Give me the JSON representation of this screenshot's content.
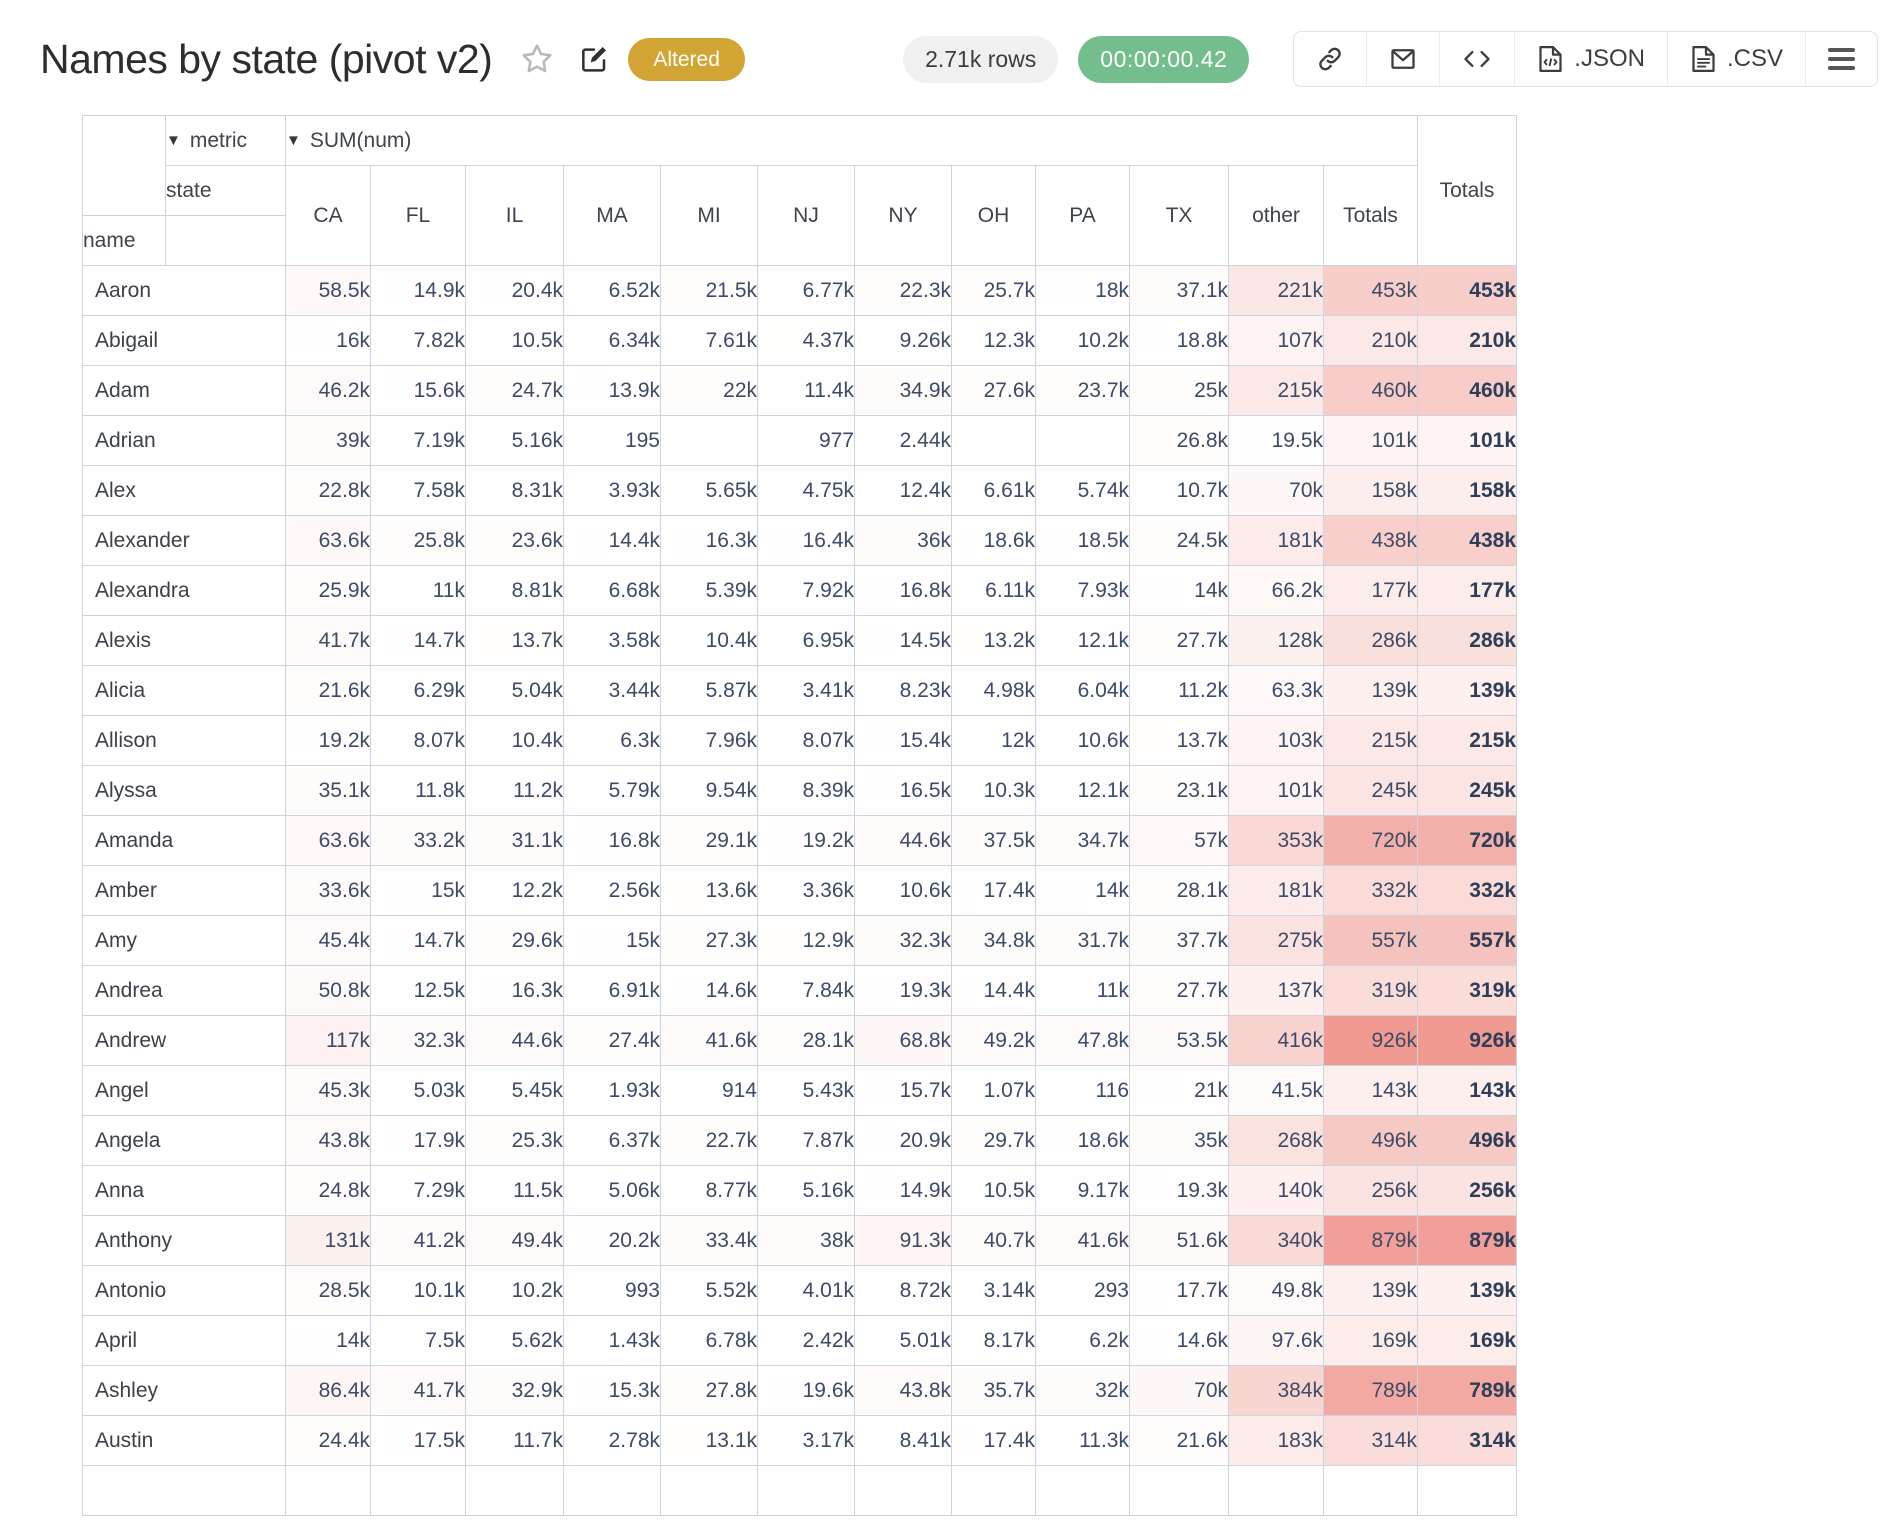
{
  "header": {
    "title": "Names by state (pivot v2)",
    "altered_badge": "Altered",
    "rows_badge": "2.71k rows",
    "timer_badge": "00:00:00.42",
    "json_label": ".JSON",
    "csv_label": ".CSV"
  },
  "icons": {
    "caret_down": "▼"
  },
  "colors": {
    "heat_color": "#f09a92",
    "border": "#ccd4e0",
    "accent_gold": "#d2a434",
    "accent_green": "#73be8c"
  },
  "table": {
    "metric_label": "metric",
    "metric_value": "SUM(num)",
    "state_label": "state",
    "name_label": "name",
    "totals_label": "Totals",
    "heat_max": 926000,
    "columns": [
      "CA",
      "FL",
      "IL",
      "MA",
      "MI",
      "NJ",
      "NY",
      "OH",
      "PA",
      "TX",
      "other",
      "Totals"
    ],
    "rows": [
      {
        "name": "Aaron",
        "values": [
          "58.5k",
          "14.9k",
          "20.4k",
          "6.52k",
          "21.5k",
          "6.77k",
          "22.3k",
          "25.7k",
          "18k",
          "37.1k",
          "221k",
          "453k"
        ],
        "total": "453k"
      },
      {
        "name": "Abigail",
        "values": [
          "16k",
          "7.82k",
          "10.5k",
          "6.34k",
          "7.61k",
          "4.37k",
          "9.26k",
          "12.3k",
          "10.2k",
          "18.8k",
          "107k",
          "210k"
        ],
        "total": "210k"
      },
      {
        "name": "Adam",
        "values": [
          "46.2k",
          "15.6k",
          "24.7k",
          "13.9k",
          "22k",
          "11.4k",
          "34.9k",
          "27.6k",
          "23.7k",
          "25k",
          "215k",
          "460k"
        ],
        "total": "460k"
      },
      {
        "name": "Adrian",
        "values": [
          "39k",
          "7.19k",
          "5.16k",
          "195",
          "",
          "977",
          "2.44k",
          "",
          "",
          "26.8k",
          "19.5k",
          "101k"
        ],
        "total": "101k"
      },
      {
        "name": "Alex",
        "values": [
          "22.8k",
          "7.58k",
          "8.31k",
          "3.93k",
          "5.65k",
          "4.75k",
          "12.4k",
          "6.61k",
          "5.74k",
          "10.7k",
          "70k",
          "158k"
        ],
        "total": "158k"
      },
      {
        "name": "Alexander",
        "values": [
          "63.6k",
          "25.8k",
          "23.6k",
          "14.4k",
          "16.3k",
          "16.4k",
          "36k",
          "18.6k",
          "18.5k",
          "24.5k",
          "181k",
          "438k"
        ],
        "total": "438k"
      },
      {
        "name": "Alexandra",
        "values": [
          "25.9k",
          "11k",
          "8.81k",
          "6.68k",
          "5.39k",
          "7.92k",
          "16.8k",
          "6.11k",
          "7.93k",
          "14k",
          "66.2k",
          "177k"
        ],
        "total": "177k"
      },
      {
        "name": "Alexis",
        "values": [
          "41.7k",
          "14.7k",
          "13.7k",
          "3.58k",
          "10.4k",
          "6.95k",
          "14.5k",
          "13.2k",
          "12.1k",
          "27.7k",
          "128k",
          "286k"
        ],
        "total": "286k"
      },
      {
        "name": "Alicia",
        "values": [
          "21.6k",
          "6.29k",
          "5.04k",
          "3.44k",
          "5.87k",
          "3.41k",
          "8.23k",
          "4.98k",
          "6.04k",
          "11.2k",
          "63.3k",
          "139k"
        ],
        "total": "139k"
      },
      {
        "name": "Allison",
        "values": [
          "19.2k",
          "8.07k",
          "10.4k",
          "6.3k",
          "7.96k",
          "8.07k",
          "15.4k",
          "12k",
          "10.6k",
          "13.7k",
          "103k",
          "215k"
        ],
        "total": "215k"
      },
      {
        "name": "Alyssa",
        "values": [
          "35.1k",
          "11.8k",
          "11.2k",
          "5.79k",
          "9.54k",
          "8.39k",
          "16.5k",
          "10.3k",
          "12.1k",
          "23.1k",
          "101k",
          "245k"
        ],
        "total": "245k"
      },
      {
        "name": "Amanda",
        "values": [
          "63.6k",
          "33.2k",
          "31.1k",
          "16.8k",
          "29.1k",
          "19.2k",
          "44.6k",
          "37.5k",
          "34.7k",
          "57k",
          "353k",
          "720k"
        ],
        "total": "720k"
      },
      {
        "name": "Amber",
        "values": [
          "33.6k",
          "15k",
          "12.2k",
          "2.56k",
          "13.6k",
          "3.36k",
          "10.6k",
          "17.4k",
          "14k",
          "28.1k",
          "181k",
          "332k"
        ],
        "total": "332k"
      },
      {
        "name": "Amy",
        "values": [
          "45.4k",
          "14.7k",
          "29.6k",
          "15k",
          "27.3k",
          "12.9k",
          "32.3k",
          "34.8k",
          "31.7k",
          "37.7k",
          "275k",
          "557k"
        ],
        "total": "557k"
      },
      {
        "name": "Andrea",
        "values": [
          "50.8k",
          "12.5k",
          "16.3k",
          "6.91k",
          "14.6k",
          "7.84k",
          "19.3k",
          "14.4k",
          "11k",
          "27.7k",
          "137k",
          "319k"
        ],
        "total": "319k"
      },
      {
        "name": "Andrew",
        "values": [
          "117k",
          "32.3k",
          "44.6k",
          "27.4k",
          "41.6k",
          "28.1k",
          "68.8k",
          "49.2k",
          "47.8k",
          "53.5k",
          "416k",
          "926k"
        ],
        "total": "926k"
      },
      {
        "name": "Angel",
        "values": [
          "45.3k",
          "5.03k",
          "5.45k",
          "1.93k",
          "914",
          "5.43k",
          "15.7k",
          "1.07k",
          "116",
          "21k",
          "41.5k",
          "143k"
        ],
        "total": "143k"
      },
      {
        "name": "Angela",
        "values": [
          "43.8k",
          "17.9k",
          "25.3k",
          "6.37k",
          "22.7k",
          "7.87k",
          "20.9k",
          "29.7k",
          "18.6k",
          "35k",
          "268k",
          "496k"
        ],
        "total": "496k"
      },
      {
        "name": "Anna",
        "values": [
          "24.8k",
          "7.29k",
          "11.5k",
          "5.06k",
          "8.77k",
          "5.16k",
          "14.9k",
          "10.5k",
          "9.17k",
          "19.3k",
          "140k",
          "256k"
        ],
        "total": "256k"
      },
      {
        "name": "Anthony",
        "values": [
          "131k",
          "41.2k",
          "49.4k",
          "20.2k",
          "33.4k",
          "38k",
          "91.3k",
          "40.7k",
          "41.6k",
          "51.6k",
          "340k",
          "879k"
        ],
        "total": "879k"
      },
      {
        "name": "Antonio",
        "values": [
          "28.5k",
          "10.1k",
          "10.2k",
          "993",
          "5.52k",
          "4.01k",
          "8.72k",
          "3.14k",
          "293",
          "17.7k",
          "49.8k",
          "139k"
        ],
        "total": "139k"
      },
      {
        "name": "April",
        "values": [
          "14k",
          "7.5k",
          "5.62k",
          "1.43k",
          "6.78k",
          "2.42k",
          "5.01k",
          "8.17k",
          "6.2k",
          "14.6k",
          "97.6k",
          "169k"
        ],
        "total": "169k"
      },
      {
        "name": "Ashley",
        "values": [
          "86.4k",
          "41.7k",
          "32.9k",
          "15.3k",
          "27.8k",
          "19.6k",
          "43.8k",
          "35.7k",
          "32k",
          "70k",
          "384k",
          "789k"
        ],
        "total": "789k"
      },
      {
        "name": "Austin",
        "values": [
          "24.4k",
          "17.5k",
          "11.7k",
          "2.78k",
          "13.1k",
          "3.17k",
          "8.41k",
          "17.4k",
          "11.3k",
          "21.6k",
          "183k",
          "314k"
        ],
        "total": "314k"
      }
    ]
  }
}
